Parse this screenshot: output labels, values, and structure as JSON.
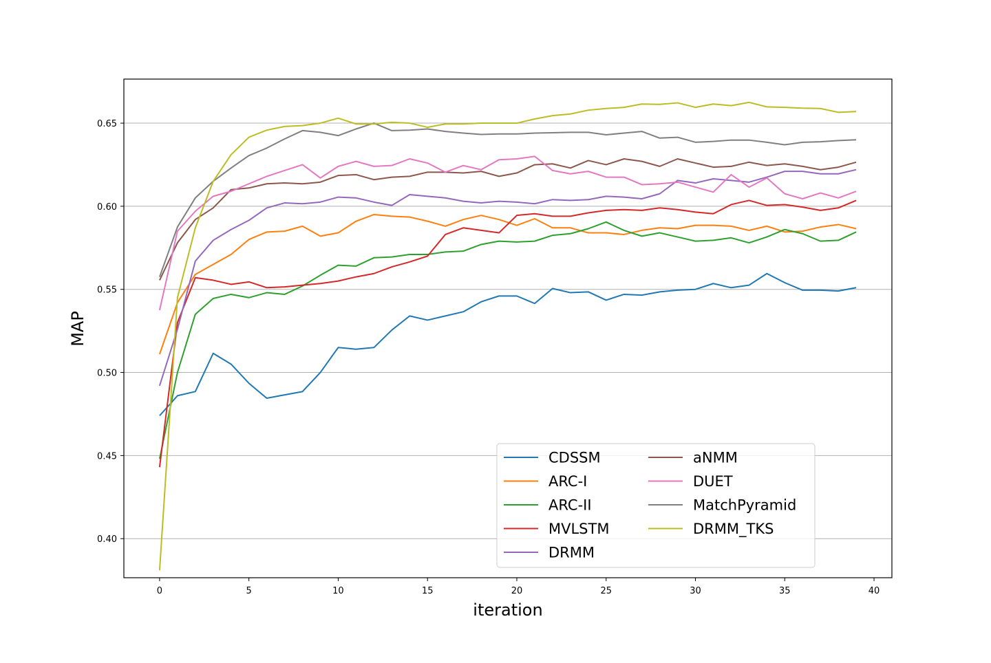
{
  "chart_data": {
    "type": "line",
    "xlabel": "iteration",
    "ylabel": "MAP",
    "xlim": [
      -2,
      41
    ],
    "ylim": [
      0.385,
      0.66
    ],
    "ylim_plot": [
      0.3765,
      0.6765
    ],
    "xticks": [
      0,
      5,
      10,
      15,
      20,
      25,
      30,
      35,
      40
    ],
    "yticks": [
      0.4,
      0.45,
      0.5,
      0.55,
      0.6,
      0.65
    ],
    "xtick_labels": [
      "0",
      "5",
      "10",
      "15",
      "20",
      "25",
      "30",
      "35",
      "40"
    ],
    "ytick_labels": [
      "0.40",
      "0.45",
      "0.50",
      "0.55",
      "0.60",
      "0.65"
    ],
    "grid": "y",
    "legend": {
      "placement": "lower-right",
      "columns": 2
    },
    "x": [
      0,
      1,
      2,
      3,
      4,
      5,
      6,
      7,
      8,
      9,
      10,
      11,
      12,
      13,
      14,
      15,
      16,
      17,
      18,
      19,
      20,
      21,
      22,
      23,
      24,
      25,
      26,
      27,
      28,
      29,
      30,
      31,
      32,
      33,
      34,
      35,
      36,
      37,
      38,
      39
    ],
    "series": [
      {
        "name": "CDSSM",
        "color": "#1f77b4",
        "values": [
          0.474,
          0.486,
          0.4885,
          0.5115,
          0.505,
          0.4935,
          0.4845,
          0.4865,
          0.4885,
          0.5,
          0.515,
          0.514,
          0.515,
          0.5255,
          0.534,
          0.5315,
          0.534,
          0.5365,
          0.5425,
          0.546,
          0.546,
          0.5415,
          0.5505,
          0.548,
          0.5485,
          0.5435,
          0.547,
          0.5465,
          0.5485,
          0.5495,
          0.55,
          0.5535,
          0.551,
          0.5525,
          0.5595,
          0.554,
          0.5495,
          0.5495,
          0.549,
          0.551
        ]
      },
      {
        "name": "ARC-I",
        "color": "#ff7f0e",
        "values": [
          0.511,
          0.542,
          0.559,
          0.565,
          0.571,
          0.58,
          0.5845,
          0.585,
          0.588,
          0.582,
          0.584,
          0.591,
          0.595,
          0.594,
          0.5935,
          0.591,
          0.588,
          0.592,
          0.5945,
          0.592,
          0.5885,
          0.5925,
          0.587,
          0.587,
          0.584,
          0.584,
          0.583,
          0.5855,
          0.587,
          0.5865,
          0.5885,
          0.5885,
          0.588,
          0.5855,
          0.588,
          0.5845,
          0.585,
          0.5875,
          0.589,
          0.5865
        ]
      },
      {
        "name": "ARC-II",
        "color": "#2ca02c",
        "values": [
          0.448,
          0.5,
          0.535,
          0.5445,
          0.547,
          0.545,
          0.548,
          0.547,
          0.552,
          0.5585,
          0.5645,
          0.564,
          0.569,
          0.5695,
          0.571,
          0.571,
          0.5725,
          0.573,
          0.577,
          0.579,
          0.5785,
          0.579,
          0.5825,
          0.5835,
          0.5865,
          0.5905,
          0.5855,
          0.582,
          0.584,
          0.5815,
          0.579,
          0.5795,
          0.581,
          0.578,
          0.5815,
          0.586,
          0.5835,
          0.579,
          0.5795,
          0.5845
        ]
      },
      {
        "name": "MVLSTM",
        "color": "#d62728",
        "values": [
          0.443,
          0.53,
          0.557,
          0.5555,
          0.553,
          0.5545,
          0.551,
          0.5515,
          0.5525,
          0.5535,
          0.555,
          0.5575,
          0.5595,
          0.5635,
          0.5665,
          0.57,
          0.583,
          0.587,
          0.5855,
          0.584,
          0.5945,
          0.5955,
          0.594,
          0.594,
          0.596,
          0.5975,
          0.598,
          0.5975,
          0.599,
          0.598,
          0.5965,
          0.5955,
          0.601,
          0.6035,
          0.6005,
          0.601,
          0.5995,
          0.5975,
          0.599,
          0.6035
        ]
      },
      {
        "name": "DRMM",
        "color": "#9467bd",
        "values": [
          0.492,
          0.526,
          0.567,
          0.5795,
          0.586,
          0.5915,
          0.599,
          0.602,
          0.6015,
          0.6025,
          0.6055,
          0.605,
          0.6025,
          0.6005,
          0.607,
          0.606,
          0.605,
          0.603,
          0.602,
          0.603,
          0.6025,
          0.6015,
          0.604,
          0.6035,
          0.604,
          0.606,
          0.6055,
          0.6045,
          0.6075,
          0.6155,
          0.614,
          0.6165,
          0.6155,
          0.6145,
          0.6175,
          0.621,
          0.621,
          0.6195,
          0.6195,
          0.622
        ]
      },
      {
        "name": "aNMM",
        "color": "#8c564b",
        "values": [
          0.5555,
          0.578,
          0.592,
          0.599,
          0.61,
          0.611,
          0.6135,
          0.614,
          0.6135,
          0.6145,
          0.6185,
          0.619,
          0.616,
          0.6175,
          0.618,
          0.6205,
          0.6205,
          0.62,
          0.621,
          0.618,
          0.62,
          0.625,
          0.6255,
          0.623,
          0.6275,
          0.625,
          0.6285,
          0.627,
          0.624,
          0.6285,
          0.626,
          0.6235,
          0.624,
          0.6265,
          0.6245,
          0.6255,
          0.624,
          0.622,
          0.6235,
          0.6265
        ]
      },
      {
        "name": "DUET",
        "color": "#e377c2",
        "values": [
          0.5375,
          0.585,
          0.597,
          0.606,
          0.609,
          0.6135,
          0.618,
          0.6215,
          0.625,
          0.617,
          0.624,
          0.627,
          0.624,
          0.6245,
          0.6285,
          0.626,
          0.6205,
          0.6245,
          0.622,
          0.628,
          0.6285,
          0.63,
          0.6215,
          0.6195,
          0.621,
          0.6175,
          0.6175,
          0.613,
          0.6135,
          0.6145,
          0.6115,
          0.6085,
          0.619,
          0.6115,
          0.617,
          0.6075,
          0.6045,
          0.608,
          0.605,
          0.609
        ]
      },
      {
        "name": "MatchPyramid",
        "color": "#7f7f7f",
        "values": [
          0.5575,
          0.5875,
          0.605,
          0.615,
          0.623,
          0.6305,
          0.635,
          0.6405,
          0.6455,
          0.6445,
          0.6425,
          0.6465,
          0.65,
          0.6455,
          0.6458,
          0.6465,
          0.645,
          0.644,
          0.6432,
          0.6435,
          0.6435,
          0.644,
          0.6442,
          0.6445,
          0.6445,
          0.643,
          0.644,
          0.645,
          0.641,
          0.6415,
          0.6385,
          0.639,
          0.6398,
          0.6398,
          0.6385,
          0.637,
          0.6385,
          0.6388,
          0.6395,
          0.64
        ]
      },
      {
        "name": "DRMM_TKS",
        "color": "#bcbd22",
        "values": [
          0.381,
          0.545,
          0.587,
          0.615,
          0.631,
          0.6415,
          0.6458,
          0.648,
          0.6485,
          0.65,
          0.653,
          0.6495,
          0.6495,
          0.6505,
          0.65,
          0.6475,
          0.6495,
          0.6495,
          0.65,
          0.65,
          0.65,
          0.6525,
          0.6545,
          0.6555,
          0.6578,
          0.6588,
          0.6595,
          0.6615,
          0.6613,
          0.6622,
          0.6595,
          0.6615,
          0.6605,
          0.6625,
          0.6598,
          0.6595,
          0.659,
          0.6588,
          0.6565,
          0.657
        ]
      }
    ]
  }
}
